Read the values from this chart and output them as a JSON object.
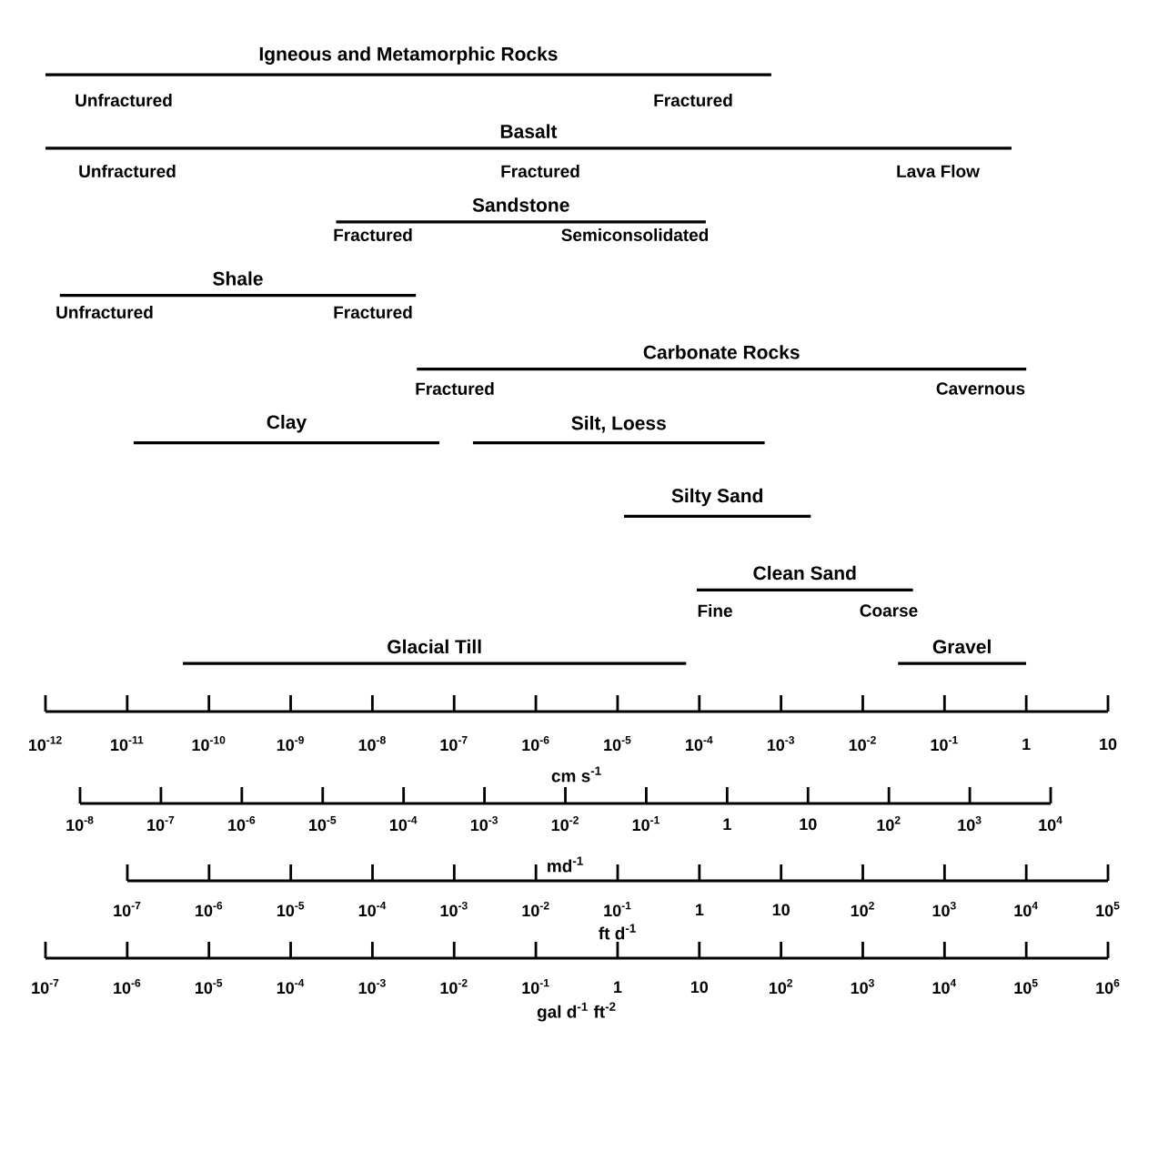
{
  "chart_data": [
    {
      "type": "bar",
      "orientation": "horizontal",
      "log": "x",
      "categories": [
        "Igneous and Metamorphic Rocks",
        "Basalt",
        "Sandstone",
        "Shale",
        "Carbonate Rocks",
        "Clay",
        "Silty Sand",
        "Clean Sand",
        "Glacial Till"
      ],
      "series": [
        {
          "color": "#000000",
          "base": [
            1e-12,
            1e-12,
            3.6e-09,
            1.5e-12,
            3.5e-08,
            1.2e-11,
            1.2e-05,
            9.3e-05,
            4.8e-11
          ],
          "values": [
            0.00076,
            0.66,
            0.00012,
            3.4e-08,
            1,
            6.6e-08,
            0.0023,
            0.041,
            6.9e-05
          ]
        },
        {
          "color": "#000000",
          "base": [
            null,
            null,
            null,
            null,
            null,
            1.7e-07,
            null,
            null,
            0.027
          ],
          "values": [
            null,
            null,
            null,
            null,
            null,
            0.00063,
            null,
            null,
            0.97
          ],
          "value_labels": [
            null,
            null,
            null,
            null,
            null,
            "Silt, Loess",
            null,
            null,
            "Gravel"
          ]
        }
      ],
      "xlim": [
        1e-12,
        10
      ],
      "xticks": [
        {
          "value": 1e-12,
          "label": "10$^{-12}$"
        },
        {
          "value": 1e-11,
          "label": "10$^{-11}$"
        },
        {
          "value": 1e-10,
          "label": "10$^{-10}$"
        },
        {
          "value": 1e-09,
          "label": "10$^{-9}$"
        },
        {
          "value": 1e-08,
          "label": "10$^{-8}$"
        },
        {
          "value": 1e-07,
          "label": "10$^{-7}$"
        },
        {
          "value": 1e-06,
          "label": "10$^{-6}$"
        },
        {
          "value": 1e-05,
          "label": "10$^{-5}$"
        },
        {
          "value": 0.0001,
          "label": "10$^{-4}$"
        },
        {
          "value": 0.001,
          "label": "10$^{-3}$"
        },
        {
          "value": 0.01,
          "label": "10$^{-2}$"
        },
        {
          "value": 0.1,
          "label": "10$^{-1}$"
        },
        1,
        10
      ],
      "xlabel": "cm s$^{-1}$",
      "annotations": [
        "Unfractured",
        "Fractured",
        "Unfractured",
        "Fractured",
        "Lava Flow",
        "Fractured",
        "Semiconsolidated",
        "Unfractured",
        "Fractured",
        "Fractured",
        "Cavernous",
        "Fine",
        "Coarse"
      ]
    },
    {
      "type": "other",
      "annotations": [
        "10$^{-8}$",
        "10$^{-7}$",
        "10$^{-6}$",
        "10$^{-5}$",
        "10$^{-4}$",
        "10$^{-3}$",
        "10$^{-2}$",
        "10$^{-1}$",
        "1",
        "10",
        "10$^{2}$",
        "10$^{3}$",
        "10$^{4}$"
      ],
      "xlabel": "md$^{-1}$"
    },
    {
      "type": "other",
      "annotations": [
        "10$^{-7}$",
        "10$^{-6}$",
        "10$^{-5}$",
        "10$^{-4}$",
        "10$^{-3}$",
        "10$^{-2}$",
        "10$^{-1}$",
        "1",
        "10",
        "10$^{2}$",
        "10$^{3}$",
        "10$^{4}$",
        "10$^{5}$"
      ],
      "xlabel": "ft d$^{-1}$"
    },
    {
      "type": "other",
      "annotations": [
        "10$^{-7}$",
        "10$^{-6}$",
        "10$^{-5}$",
        "10$^{-4}$",
        "10$^{-3}$",
        "10$^{-2}$",
        "10$^{-1}$",
        "1",
        "10",
        "10$^{2}$",
        "10$^{3}$",
        "10$^{4}$",
        "10$^{5}$",
        "10$^{6}$"
      ],
      "xlabel": "gal d$^{-1}$ ft$^{-2}$"
    }
  ]
}
